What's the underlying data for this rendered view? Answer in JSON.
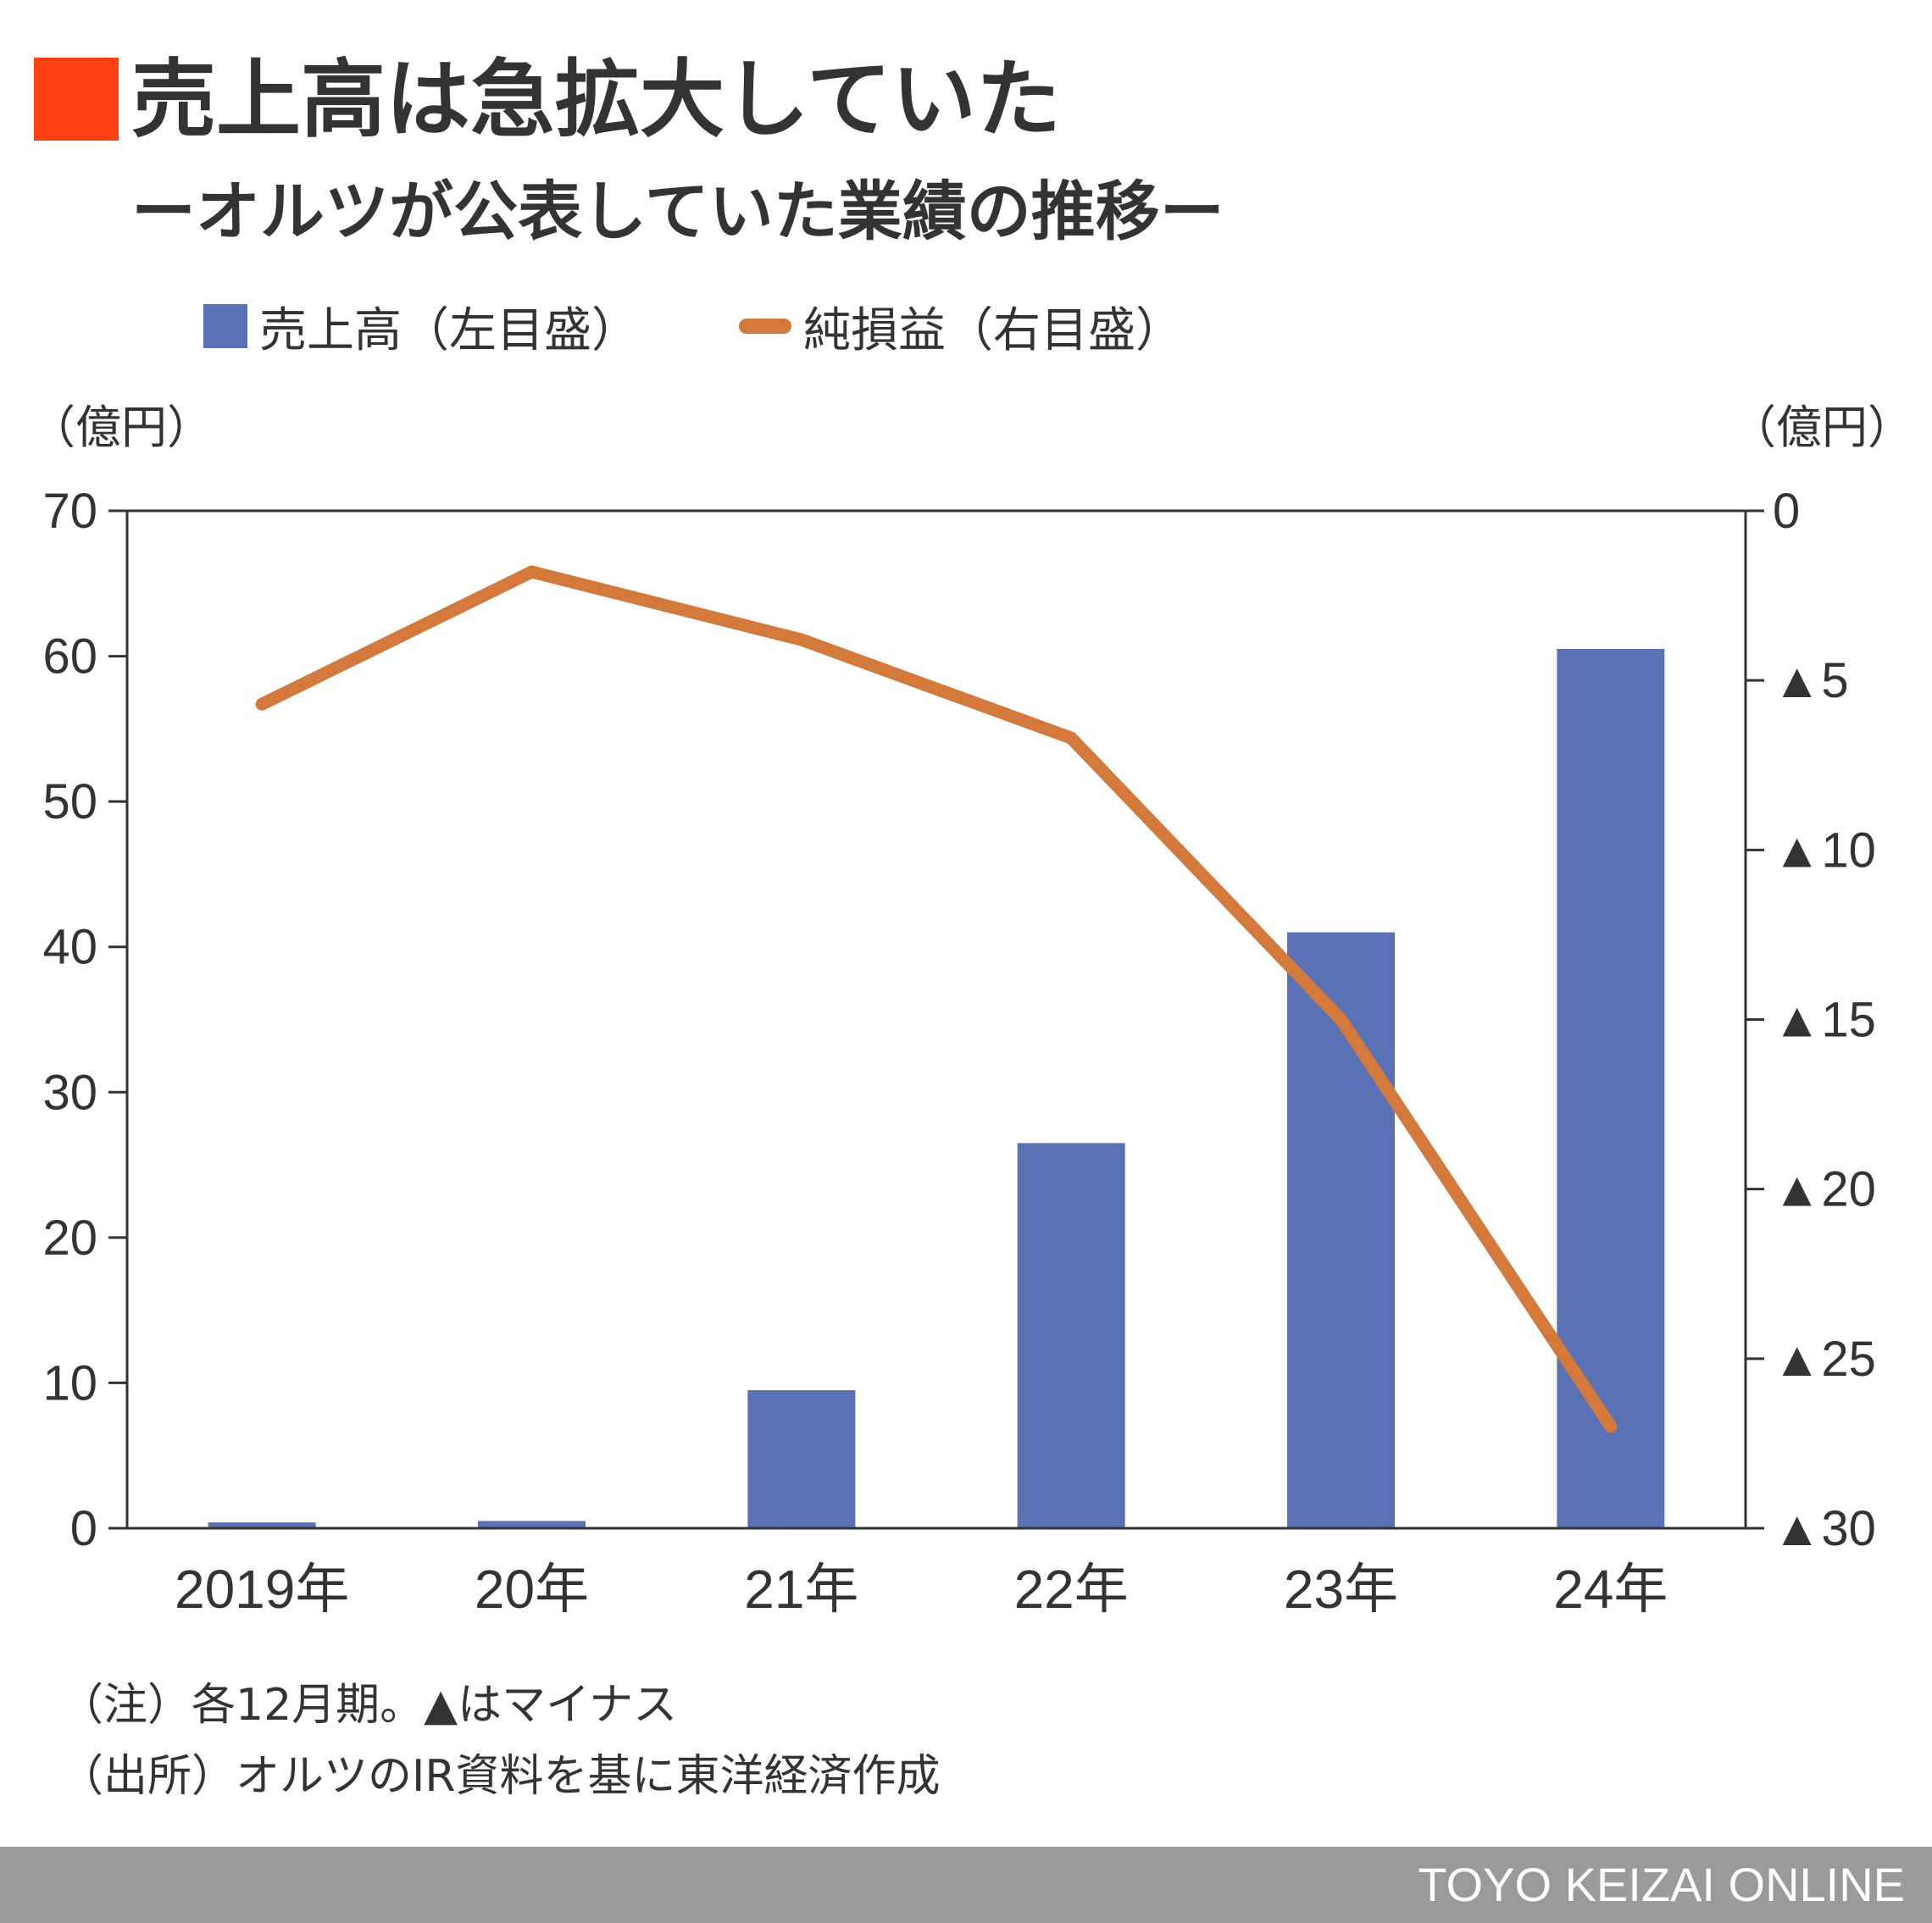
{
  "title": "売上高は急拡大していた",
  "subtitle": "ーオルツが公表していた業績の推移ー",
  "colors": {
    "accent": "#ff4013",
    "bar": "#5a72b4",
    "line": "#d2793b",
    "footer_bg": "#9a9a9a"
  },
  "legend": {
    "bar_label": "売上高（左目盛）",
    "line_label": "純損益（右目盛）"
  },
  "units": {
    "left": "（億円）",
    "right": "（億円）"
  },
  "notes": {
    "note1": "（注）各12月期。▲はマイナス",
    "note2": "（出所）オルツのIR資料を基に東洋経済作成"
  },
  "footer": "TOYO KEIZAI ONLINE",
  "chart_data": {
    "type": "bar+line",
    "categories": [
      "2019年",
      "20年",
      "21年",
      "22年",
      "23年",
      "24年"
    ],
    "series": [
      {
        "name": "売上高（左目盛）",
        "type": "bar",
        "axis": "left",
        "values": [
          0.4,
          0.5,
          9.5,
          26.5,
          41,
          60.5
        ]
      },
      {
        "name": "純損益（右目盛）",
        "type": "line",
        "axis": "right",
        "values": [
          -5.7,
          -1.8,
          -3.8,
          -6.7,
          -15,
          -27
        ]
      }
    ],
    "left_axis": {
      "ylim": [
        0,
        70
      ],
      "ticks": [
        0,
        10,
        20,
        30,
        40,
        50,
        60,
        70
      ],
      "tick_labels": [
        "0",
        "10",
        "20",
        "30",
        "40",
        "50",
        "60",
        "70"
      ]
    },
    "right_axis": {
      "ylim": [
        -30,
        0
      ],
      "ticks": [
        0,
        -5,
        -10,
        -15,
        -20,
        -25,
        -30
      ],
      "tick_labels": [
        "0",
        "▲5",
        "▲10",
        "▲15",
        "▲20",
        "▲25",
        "▲30"
      ]
    },
    "grid": false,
    "legend_position": "top"
  }
}
